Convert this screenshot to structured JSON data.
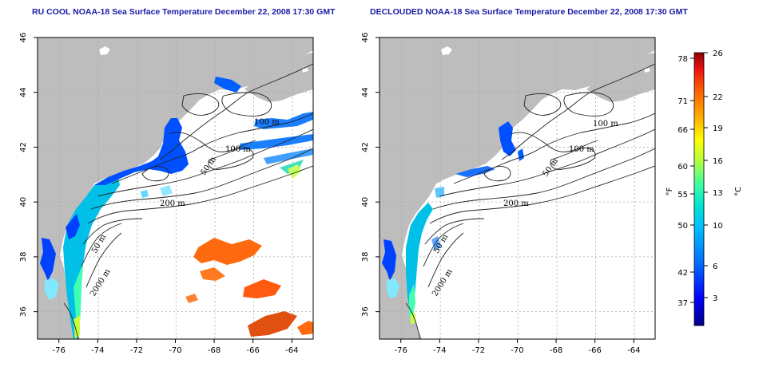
{
  "titles": {
    "left": "RU COOL NOAA-18 Sea Surface Temperature December 22, 2008 17:30 GMT",
    "right": "DECLOUDED NOAA-18 Sea Surface Temperature December 22, 2008 17:30 GMT"
  },
  "axes": {
    "x_ticks": [
      -76,
      -74,
      -72,
      -70,
      -68,
      -66,
      -64
    ],
    "x_tick_labels": [
      "-76",
      "-74",
      "-72",
      "-70",
      "-68",
      "-66",
      "-64"
    ],
    "y_ticks": [
      36,
      38,
      40,
      42,
      44,
      46
    ],
    "y_tick_labels": [
      "36",
      "38",
      "40",
      "42",
      "44",
      "46"
    ],
    "xlim": [
      -77.1,
      -62.9
    ],
    "ylim": [
      35,
      46
    ]
  },
  "contour_labels": {
    "left": [
      "100 m",
      "100 m",
      "50 m",
      "200 m",
      "50 m",
      "2000 m"
    ],
    "right": [
      "100 m",
      "100 m",
      "50 m",
      "200 m",
      "50 m",
      "2000 m"
    ]
  },
  "colorbar": {
    "fahrenheit_label": "°F",
    "celsius_label": "°C",
    "fahrenheit_ticks": [
      "78",
      "71",
      "66",
      "60",
      "55",
      "50",
      "42",
      "37"
    ],
    "celsius_ticks": [
      "26",
      "22",
      "19",
      "16",
      "13",
      "10",
      "6",
      "3"
    ],
    "colors": [
      "#00008b",
      "#0000ff",
      "#0066ff",
      "#00bfff",
      "#00e5d0",
      "#40ff9f",
      "#b0ff40",
      "#ffff00",
      "#ffb000",
      "#ff6000",
      "#ee1010",
      "#8b0000"
    ]
  },
  "colors": {
    "land": "#bdbdbd",
    "water": "#ffffff",
    "frame": "#000000",
    "title": "#1a1aa6",
    "grid": "#a8a8a8"
  }
}
